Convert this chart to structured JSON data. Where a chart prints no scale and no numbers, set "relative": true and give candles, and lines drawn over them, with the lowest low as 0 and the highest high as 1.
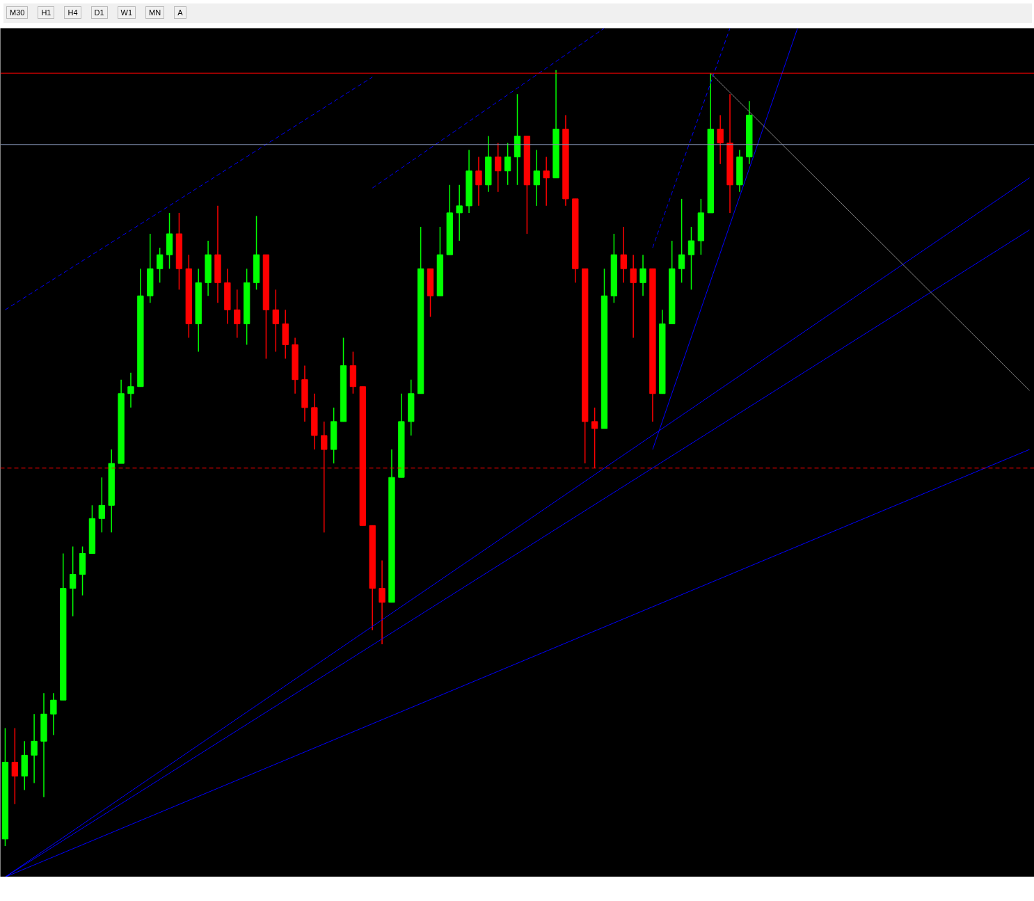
{
  "chart_data": {
    "type": "candlestick",
    "relative": true,
    "grid": false,
    "annotations": [
      "M30",
      "H1",
      "H4",
      "D1",
      "W1",
      "MN",
      "A"
    ],
    "categories": [
      null,
      null,
      null,
      null,
      null,
      null,
      null,
      null,
      null,
      null,
      null,
      null,
      null,
      null,
      null,
      null,
      null,
      null,
      null,
      null,
      null,
      null,
      null,
      null,
      null,
      null,
      null,
      null,
      null,
      null,
      null,
      null,
      null,
      null,
      null,
      null,
      null,
      null,
      null,
      null,
      null,
      null,
      null,
      null,
      null,
      null,
      null,
      null,
      null,
      null,
      null,
      null,
      null,
      null,
      null,
      null,
      null,
      null,
      null,
      null,
      null,
      null,
      null,
      null,
      null,
      null,
      null,
      null,
      null,
      null,
      null,
      null,
      null,
      null,
      null,
      null,
      null,
      null,
      null,
      null,
      null,
      null,
      null,
      null,
      null,
      null,
      null,
      null,
      null,
      null,
      null,
      null,
      null,
      null,
      null,
      null,
      null,
      null,
      null,
      null,
      null,
      null,
      null,
      null,
      null,
      null,
      null
    ],
    "ohlc": [
      [
        0.009,
        0.152,
        0,
        0.108
      ],
      [
        0.108,
        0.152,
        0.054,
        0.09
      ],
      [
        0.09,
        0.135,
        0.072,
        0.117
      ],
      [
        0.117,
        0.17,
        0.081,
        0.135
      ],
      [
        0.135,
        0.197,
        0.063,
        0.17
      ],
      [
        0.17,
        0.197,
        0.143,
        0.188
      ],
      [
        0.188,
        0.377,
        0.188,
        0.332
      ],
      [
        0.332,
        0.386,
        0.296,
        0.35
      ],
      [
        0.35,
        0.386,
        0.323,
        0.377
      ],
      [
        0.377,
        0.439,
        0.377,
        0.422
      ],
      [
        0.422,
        0.475,
        0.404,
        0.439
      ],
      [
        0.439,
        0.511,
        0.404,
        0.493
      ],
      [
        0.493,
        0.601,
        0.493,
        0.583
      ],
      [
        0.583,
        0.61,
        0.565,
        0.592
      ],
      [
        0.592,
        0.744,
        0.592,
        0.709
      ],
      [
        0.709,
        0.789,
        0.7,
        0.744
      ],
      [
        0.744,
        0.771,
        0.726,
        0.762
      ],
      [
        0.762,
        0.816,
        0.744,
        0.789
      ],
      [
        0.789,
        0.816,
        0.717,
        0.744
      ],
      [
        0.744,
        0.762,
        0.655,
        0.673
      ],
      [
        0.673,
        0.744,
        0.637,
        0.726
      ],
      [
        0.726,
        0.78,
        0.709,
        0.762
      ],
      [
        0.762,
        0.825,
        0.7,
        0.726
      ],
      [
        0.726,
        0.744,
        0.673,
        0.691
      ],
      [
        0.691,
        0.717,
        0.655,
        0.673
      ],
      [
        0.673,
        0.744,
        0.646,
        0.726
      ],
      [
        0.726,
        0.812,
        0.717,
        0.762
      ],
      [
        0.762,
        0.762,
        0.628,
        0.691
      ],
      [
        0.691,
        0.717,
        0.637,
        0.673
      ],
      [
        0.673,
        0.691,
        0.628,
        0.646
      ],
      [
        0.646,
        0.655,
        0.583,
        0.601
      ],
      [
        0.601,
        0.619,
        0.547,
        0.565
      ],
      [
        0.565,
        0.583,
        0.511,
        0.529
      ],
      [
        0.529,
        0.547,
        0.404,
        0.511
      ],
      [
        0.511,
        0.565,
        0.493,
        0.547
      ],
      [
        0.547,
        0.655,
        0.547,
        0.619
      ],
      [
        0.619,
        0.637,
        0.583,
        0.592
      ],
      [
        0.592,
        0.592,
        0.413,
        0.413
      ],
      [
        0.413,
        0.413,
        0.278,
        0.332
      ],
      [
        0.332,
        0.368,
        0.26,
        0.314
      ],
      [
        0.314,
        0.511,
        0.314,
        0.475
      ],
      [
        0.475,
        0.583,
        0.475,
        0.547
      ],
      [
        0.547,
        0.601,
        0.529,
        0.583
      ],
      [
        0.583,
        0.798,
        0.583,
        0.744
      ],
      [
        0.744,
        0.744,
        0.682,
        0.709
      ],
      [
        0.709,
        0.798,
        0.709,
        0.762
      ],
      [
        0.762,
        0.852,
        0.762,
        0.816
      ],
      [
        0.816,
        0.852,
        0.78,
        0.825
      ],
      [
        0.825,
        0.897,
        0.816,
        0.87
      ],
      [
        0.87,
        0.888,
        0.825,
        0.852
      ],
      [
        0.852,
        0.915,
        0.843,
        0.888
      ],
      [
        0.888,
        0.906,
        0.843,
        0.87
      ],
      [
        0.87,
        0.906,
        0.852,
        0.888
      ],
      [
        0.888,
        0.969,
        0.852,
        0.915
      ],
      [
        0.915,
        0.915,
        0.789,
        0.852
      ],
      [
        0.852,
        0.897,
        0.825,
        0.87
      ],
      [
        0.87,
        0.888,
        0.825,
        0.861
      ],
      [
        0.861,
        1.0,
        0.861,
        0.924
      ],
      [
        0.924,
        0.942,
        0.825,
        0.834
      ],
      [
        0.834,
        0.834,
        0.726,
        0.744
      ],
      [
        0.744,
        0.744,
        0.493,
        0.547
      ],
      [
        0.547,
        0.565,
        0.487,
        0.538
      ],
      [
        0.538,
        0.744,
        0.538,
        0.709
      ],
      [
        0.709,
        0.789,
        0.7,
        0.762
      ],
      [
        0.762,
        0.798,
        0.726,
        0.744
      ],
      [
        0.744,
        0.762,
        0.655,
        0.726
      ],
      [
        0.726,
        0.762,
        0.709,
        0.744
      ],
      [
        0.744,
        0.744,
        0.547,
        0.583
      ],
      [
        0.583,
        0.691,
        0.583,
        0.673
      ],
      [
        0.673,
        0.78,
        0.673,
        0.744
      ],
      [
        0.744,
        0.834,
        0.726,
        0.762
      ],
      [
        0.762,
        0.798,
        0.717,
        0.78
      ],
      [
        0.78,
        0.834,
        0.762,
        0.816
      ],
      [
        0.816,
        0.996,
        0.816,
        0.924
      ],
      [
        0.924,
        0.942,
        0.879,
        0.906
      ],
      [
        0.906,
        0.969,
        0.816,
        0.852
      ],
      [
        0.852,
        0.897,
        0.843,
        0.888
      ],
      [
        0.888,
        0.96,
        0.879,
        0.942
      ],
      null,
      null,
      null,
      null,
      null,
      null,
      null,
      null,
      null,
      null,
      null,
      null,
      null,
      null,
      null,
      null,
      null,
      null,
      null,
      null,
      null,
      null,
      null,
      null,
      null,
      null,
      null,
      null,
      null
    ],
    "colors": [
      "#00ff00",
      "#ff0000",
      "#00ff00",
      "#00ff00",
      "#00ff00",
      "#00ff00",
      "#00ff00",
      "#00ff00",
      "#00ff00",
      "#00ff00",
      "#00ff00",
      "#00ff00",
      "#00ff00",
      "#00ff00",
      "#00ff00",
      "#00ff00",
      "#00ff00",
      "#00ff00",
      "#ff0000",
      "#ff0000",
      "#00ff00",
      "#00ff00",
      "#ff0000",
      "#ff0000",
      "#ff0000",
      "#00ff00",
      "#00ff00",
      "#ff0000",
      "#ff0000",
      "#ff0000",
      "#ff0000",
      "#ff0000",
      "#ff0000",
      "#ff0000",
      "#00ff00",
      "#00ff00",
      "#ff0000",
      "#ff0000",
      "#ff0000",
      "#ff0000",
      "#00ff00",
      "#00ff00",
      "#00ff00",
      "#00ff00",
      "#ff0000",
      "#00ff00",
      "#00ff00",
      "#00ff00",
      "#00ff00",
      "#ff0000",
      "#00ff00",
      "#ff0000",
      "#00ff00",
      "#00ff00",
      "#ff0000",
      "#00ff00",
      "#ff0000",
      "#00ff00",
      "#ff0000",
      "#ff0000",
      "#ff0000",
      "#ff0000",
      "#00ff00",
      "#00ff00",
      "#ff0000",
      "#ff0000",
      "#00ff00",
      "#ff0000",
      "#00ff00",
      "#00ff00",
      "#00ff00",
      "#00ff00",
      "#00ff00",
      "#00ff00",
      "#ff0000",
      "#ff0000",
      "#00ff00",
      "#00ff00",
      null,
      null,
      null,
      null,
      null,
      null,
      null,
      null,
      null,
      null,
      null,
      null,
      null,
      null,
      null,
      null,
      null,
      null,
      null,
      null,
      null,
      null,
      null,
      null,
      null,
      null,
      null,
      null,
      null
    ],
    "series": [
      {
        "type": "line",
        "values": [
          0.691,
          null,
          null,
          null,
          null,
          null,
          null,
          null,
          null,
          null,
          null,
          null,
          null,
          null,
          null,
          null,
          null,
          null,
          null,
          null,
          null,
          null,
          null,
          null,
          null,
          null,
          null,
          null,
          null,
          null,
          null,
          null,
          null,
          null,
          null,
          null,
          null,
          null,
          0.991,
          null,
          null,
          null,
          null,
          null,
          null,
          null,
          null,
          null,
          null,
          null,
          null,
          null,
          null,
          null,
          null,
          null,
          null,
          null,
          null,
          null,
          null,
          null,
          null,
          null,
          null,
          null,
          null,
          null,
          null,
          null,
          null,
          null,
          null,
          null,
          null,
          null,
          null,
          null,
          null,
          null,
          null,
          null,
          null,
          null,
          null,
          null,
          null,
          null,
          null,
          null,
          null,
          null,
          null,
          null,
          null,
          null,
          null,
          null,
          null,
          null,
          null,
          null,
          null,
          null,
          null,
          null,
          null
        ],
        "color": "#0000ff",
        "line_style": "dashed"
      },
      {
        "type": "line",
        "values": [
          null,
          null,
          null,
          null,
          null,
          null,
          null,
          null,
          null,
          null,
          null,
          null,
          null,
          null,
          null,
          null,
          null,
          null,
          null,
          null,
          null,
          null,
          null,
          null,
          null,
          null,
          null,
          null,
          null,
          null,
          null,
          null,
          null,
          null,
          null,
          null,
          null,
          null,
          0.848,
          null,
          null,
          null,
          null,
          null,
          null,
          null,
          null,
          null,
          null,
          null,
          null,
          null,
          null,
          null,
          null,
          null,
          null,
          null,
          null,
          null,
          null,
          null,
          1.054,
          null,
          null,
          null,
          null,
          null,
          null,
          null,
          null,
          null,
          null,
          null,
          null,
          null,
          null,
          null,
          null,
          null,
          null,
          null,
          null,
          null,
          null,
          null,
          null,
          null,
          null,
          null,
          null,
          null,
          null,
          null,
          null,
          null,
          null,
          null,
          null,
          null,
          null,
          null,
          null,
          null,
          null,
          null,
          null
        ],
        "color": "#0000ff",
        "line_style": "dashed"
      },
      {
        "type": "line",
        "values": [
          null,
          null,
          null,
          null,
          null,
          null,
          null,
          null,
          null,
          null,
          null,
          null,
          null,
          null,
          null,
          null,
          null,
          null,
          null,
          null,
          null,
          null,
          null,
          null,
          null,
          null,
          null,
          null,
          null,
          null,
          null,
          null,
          null,
          null,
          null,
          null,
          null,
          null,
          null,
          null,
          null,
          null,
          null,
          null,
          null,
          null,
          null,
          null,
          null,
          null,
          null,
          null,
          null,
          null,
          null,
          null,
          null,
          null,
          null,
          null,
          null,
          null,
          null,
          null,
          null,
          null,
          null,
          0.771,
          null,
          null,
          null,
          null,
          null,
          null,
          null,
          1.054,
          null,
          null,
          null,
          null,
          null,
          null,
          null,
          null,
          null,
          null,
          null,
          null,
          null,
          null,
          null,
          null,
          null,
          null,
          null,
          null,
          null,
          null,
          null,
          null,
          null,
          null,
          null,
          null,
          null,
          null,
          null
        ],
        "color": "#0000ff",
        "line_style": "dashed"
      },
      {
        "type": "line",
        "values": [
          -0.04,
          null,
          null,
          null,
          null,
          null,
          null,
          null,
          null,
          null,
          null,
          null,
          null,
          null,
          null,
          null,
          null,
          null,
          null,
          null,
          null,
          null,
          null,
          null,
          null,
          null,
          null,
          null,
          null,
          null,
          null,
          null,
          null,
          null,
          null,
          null,
          null,
          null,
          null,
          null,
          null,
          null,
          null,
          null,
          null,
          null,
          null,
          null,
          null,
          null,
          null,
          null,
          null,
          null,
          null,
          null,
          null,
          null,
          null,
          null,
          null,
          null,
          null,
          null,
          null,
          null,
          null,
          null,
          null,
          null,
          null,
          null,
          null,
          null,
          null,
          null,
          null,
          null,
          null,
          null,
          null,
          null,
          null,
          null,
          null,
          null,
          null,
          null,
          null,
          null,
          null,
          null,
          null,
          null,
          null,
          null,
          null,
          null,
          null,
          null,
          null,
          null,
          null,
          null,
          null,
          null,
          0.861
        ],
        "color": "#0000ff",
        "line_style": "solid"
      },
      {
        "type": "line",
        "values": [
          -0.04,
          null,
          null,
          null,
          null,
          null,
          null,
          null,
          null,
          null,
          null,
          null,
          null,
          null,
          null,
          null,
          null,
          null,
          null,
          null,
          null,
          null,
          null,
          null,
          null,
          null,
          null,
          null,
          null,
          null,
          null,
          null,
          null,
          null,
          null,
          null,
          null,
          null,
          null,
          null,
          null,
          null,
          null,
          null,
          null,
          null,
          null,
          null,
          null,
          null,
          null,
          null,
          null,
          null,
          null,
          null,
          null,
          null,
          null,
          null,
          null,
          null,
          null,
          null,
          null,
          null,
          null,
          null,
          null,
          null,
          null,
          null,
          null,
          null,
          null,
          null,
          null,
          null,
          null,
          null,
          null,
          null,
          null,
          null,
          null,
          null,
          null,
          null,
          null,
          null,
          null,
          null,
          null,
          null,
          null,
          null,
          null,
          null,
          null,
          null,
          null,
          null,
          null,
          null,
          null,
          null,
          0.794
        ],
        "color": "#0000ff",
        "line_style": "solid"
      },
      {
        "type": "line",
        "values": [
          -0.04,
          null,
          null,
          null,
          null,
          null,
          null,
          null,
          null,
          null,
          null,
          null,
          null,
          null,
          null,
          null,
          null,
          null,
          null,
          null,
          null,
          null,
          null,
          null,
          null,
          null,
          null,
          null,
          null,
          null,
          null,
          null,
          null,
          null,
          null,
          null,
          null,
          null,
          null,
          null,
          null,
          null,
          null,
          null,
          null,
          null,
          null,
          null,
          null,
          null,
          null,
          null,
          null,
          null,
          null,
          null,
          null,
          null,
          null,
          null,
          null,
          null,
          null,
          null,
          null,
          null,
          null,
          null,
          null,
          null,
          null,
          null,
          null,
          null,
          null,
          null,
          null,
          null,
          null,
          null,
          null,
          null,
          null,
          null,
          null,
          null,
          null,
          null,
          null,
          null,
          null,
          null,
          null,
          null,
          null,
          null,
          null,
          null,
          null,
          null,
          null,
          null,
          null,
          null,
          null,
          null,
          0.511
        ],
        "color": "#0000ff",
        "line_style": "solid"
      },
      {
        "type": "line",
        "values": [
          null,
          null,
          null,
          null,
          null,
          null,
          null,
          null,
          null,
          null,
          null,
          null,
          null,
          null,
          null,
          null,
          null,
          null,
          null,
          null,
          null,
          null,
          null,
          null,
          null,
          null,
          null,
          null,
          null,
          null,
          null,
          null,
          null,
          null,
          null,
          null,
          null,
          null,
          null,
          null,
          null,
          null,
          null,
          null,
          null,
          null,
          null,
          null,
          null,
          null,
          null,
          null,
          null,
          null,
          null,
          null,
          null,
          null,
          null,
          null,
          null,
          null,
          null,
          null,
          null,
          null,
          null,
          0.511,
          null,
          null,
          null,
          null,
          null,
          null,
          null,
          null,
          null,
          null,
          null,
          null,
          null,
          null,
          1.054,
          null,
          null,
          null,
          null,
          null,
          null,
          null,
          null,
          null,
          null,
          null,
          null,
          null,
          null,
          null,
          null,
          null,
          null,
          null,
          null,
          null,
          null,
          null,
          null
        ],
        "color": "#0000ff",
        "line_style": "solid"
      },
      {
        "type": "line",
        "values": [
          null,
          null,
          null,
          null,
          null,
          null,
          null,
          null,
          null,
          null,
          null,
          null,
          null,
          null,
          null,
          null,
          null,
          null,
          null,
          null,
          null,
          null,
          null,
          null,
          null,
          null,
          null,
          null,
          null,
          null,
          null,
          null,
          null,
          null,
          null,
          null,
          null,
          null,
          null,
          null,
          null,
          null,
          null,
          null,
          null,
          null,
          null,
          null,
          null,
          null,
          null,
          null,
          null,
          null,
          null,
          null,
          null,
          null,
          null,
          null,
          null,
          null,
          null,
          null,
          null,
          null,
          null,
          null,
          null,
          null,
          null,
          null,
          null,
          0.996,
          null,
          null,
          null,
          null,
          null,
          null,
          null,
          null,
          null,
          null,
          null,
          null,
          null,
          null,
          null,
          null,
          null,
          null,
          null,
          null,
          null,
          null,
          null,
          null,
          null,
          null,
          null,
          null,
          null,
          null,
          null,
          null,
          0.587
        ],
        "color": "#808080",
        "line_style": "solid"
      }
    ],
    "ref_lines": [
      {
        "axis": "y",
        "value": 0.996,
        "color": "#ff0000",
        "line_style": "solid"
      },
      {
        "axis": "y",
        "value": 0.904,
        "color": "#8090b0",
        "line_style": "solid"
      },
      {
        "axis": "y",
        "value": 0.487,
        "color": "#ff0000",
        "line_style": "dashed"
      }
    ]
  }
}
